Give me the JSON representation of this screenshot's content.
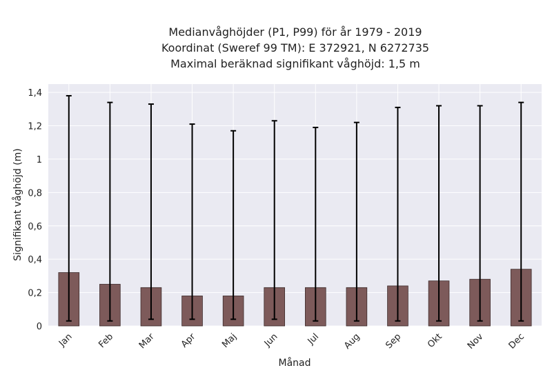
{
  "chart_data": {
    "type": "bar",
    "title_lines": [
      "Medianvåghöjder (P1, P99) för år 1979 - 2019",
      "Koordinat (Sweref 99 TM): E 372921, N 6272735",
      "Maximal beräknad signifikant våghöjd: 1,5 m"
    ],
    "xlabel": "Månad",
    "ylabel": "Signifikant våghöjd (m)",
    "categories": [
      "Jan",
      "Feb",
      "Mar",
      "Apr",
      "Maj",
      "Jun",
      "Jul",
      "Aug",
      "Sep",
      "Okt",
      "Nov",
      "Dec"
    ],
    "values": [
      0.32,
      0.25,
      0.23,
      0.18,
      0.18,
      0.23,
      0.23,
      0.23,
      0.24,
      0.27,
      0.28,
      0.34
    ],
    "error_low": [
      0.03,
      0.03,
      0.04,
      0.04,
      0.04,
      0.04,
      0.03,
      0.03,
      0.03,
      0.03,
      0.03,
      0.03
    ],
    "error_high": [
      1.38,
      1.34,
      1.33,
      1.21,
      1.17,
      1.23,
      1.19,
      1.22,
      1.31,
      1.32,
      1.32,
      1.34
    ],
    "ylim": [
      0,
      1.45
    ],
    "yticks": [
      0,
      0.2,
      0.4,
      0.6,
      0.8,
      1,
      1.2,
      1.4
    ],
    "ytick_labels": [
      "0",
      "0,2",
      "0,4",
      "0,6",
      "0,8",
      "1",
      "1,2",
      "1,4"
    ],
    "grid": true,
    "colors": {
      "bar": "#7d5a5a",
      "bar_edge": "#3d2b2b",
      "error": "#000000",
      "plot_bg": "#eaeaf2",
      "grid": "#ffffff"
    }
  }
}
